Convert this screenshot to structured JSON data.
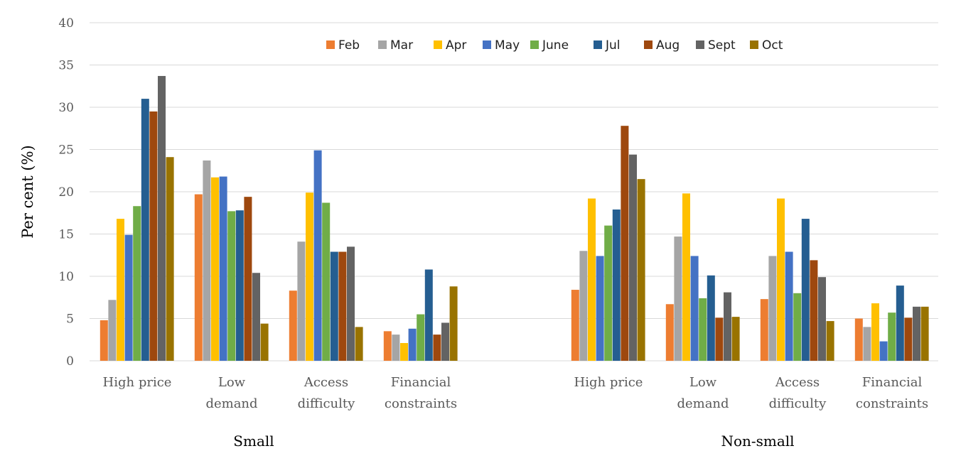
{
  "chart_data": {
    "type": "bar",
    "ylabel": "Per cent (%)",
    "ylim": [
      0,
      40
    ],
    "yticks": [
      0,
      5,
      10,
      15,
      20,
      25,
      30,
      35,
      40
    ],
    "grid": true,
    "legend_position": "top",
    "groups": [
      {
        "label": "Small",
        "categories": [
          "High price",
          "Low demand",
          "Access difficulty",
          "Financial constraints"
        ]
      },
      {
        "label": "Non-small",
        "categories": [
          "High price",
          "Low demand",
          "Access difficulty",
          "Financial constraints"
        ]
      }
    ],
    "category_label_lines": [
      [
        "High price"
      ],
      [
        "Low",
        "demand"
      ],
      [
        "Access",
        "difficulty"
      ],
      [
        "Financial",
        "constraints"
      ],
      [
        "High price"
      ],
      [
        "Low",
        "demand"
      ],
      [
        "Access",
        "difficulty"
      ],
      [
        "Financial",
        "constraints"
      ]
    ],
    "series": [
      {
        "name": "Feb",
        "color": "#ED7D31",
        "values": [
          4.8,
          19.7,
          8.3,
          3.5,
          8.4,
          6.7,
          7.3,
          5.0
        ]
      },
      {
        "name": "Mar",
        "color": "#A5A5A5",
        "values": [
          7.2,
          23.7,
          14.1,
          3.1,
          13.0,
          14.7,
          12.4,
          4.0
        ]
      },
      {
        "name": "Apr",
        "color": "#FFC000",
        "values": [
          16.8,
          21.7,
          19.9,
          2.1,
          19.2,
          19.8,
          19.2,
          6.8
        ]
      },
      {
        "name": "May",
        "color": "#4472C4",
        "values": [
          14.9,
          21.8,
          24.9,
          3.8,
          12.4,
          12.4,
          12.9,
          2.3
        ]
      },
      {
        "name": "June",
        "color": "#70AD47",
        "values": [
          18.3,
          17.7,
          18.7,
          5.5,
          16.0,
          7.4,
          8.0,
          5.7
        ]
      },
      {
        "name": "Jul",
        "color": "#255E91",
        "values": [
          31.0,
          17.8,
          12.9,
          10.8,
          17.9,
          10.1,
          16.8,
          8.9
        ]
      },
      {
        "name": "Aug",
        "color": "#9E480E",
        "values": [
          29.5,
          19.4,
          12.9,
          3.1,
          27.8,
          5.1,
          11.9,
          5.1
        ]
      },
      {
        "name": "Sept",
        "color": "#636363",
        "values": [
          33.7,
          10.4,
          13.5,
          4.5,
          24.4,
          8.1,
          9.9,
          6.4
        ]
      },
      {
        "name": "Oct",
        "color": "#997300",
        "values": [
          24.1,
          4.4,
          4.0,
          8.8,
          21.5,
          5.2,
          4.7,
          6.4
        ]
      }
    ]
  }
}
